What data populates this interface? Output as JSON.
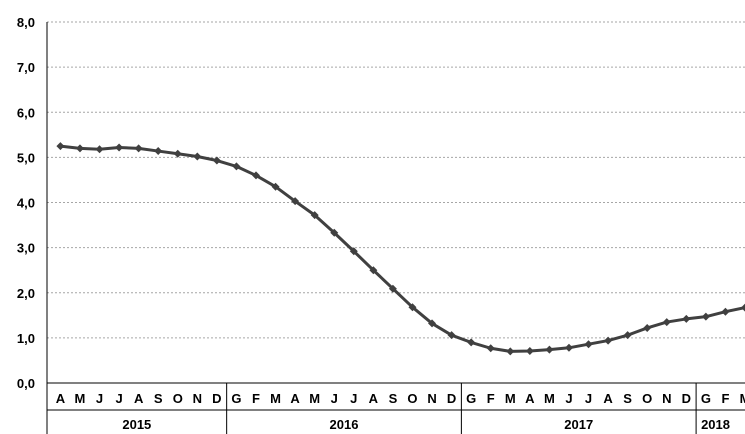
{
  "chart_data": {
    "type": "line",
    "title": "",
    "xlabel": "",
    "ylabel": "",
    "ylim": [
      0,
      8
    ],
    "y_ticks": [
      "0,0",
      "1,0",
      "2,0",
      "3,0",
      "4,0",
      "5,0",
      "6,0",
      "7,0",
      "8,0"
    ],
    "grid": "horizontal dotted",
    "legend": "none",
    "colors": {
      "line": "#404040",
      "marker": "#404040",
      "grid": "#a6a6a6",
      "axis": "#000000"
    },
    "months": [
      "A",
      "M",
      "J",
      "J",
      "A",
      "S",
      "O",
      "N",
      "D",
      "G",
      "F",
      "M",
      "A",
      "M",
      "J",
      "J",
      "A",
      "S",
      "O",
      "N",
      "D",
      "G",
      "F",
      "M",
      "A",
      "M",
      "J",
      "J",
      "A",
      "S",
      "O",
      "N",
      "D",
      "G",
      "F",
      "M"
    ],
    "years": [
      {
        "label": "2015",
        "months": 9
      },
      {
        "label": "2016",
        "months": 12
      },
      {
        "label": "2017",
        "months": 12
      },
      {
        "label": "2018",
        "months": 3
      }
    ],
    "series": [
      {
        "values": [
          5.25,
          5.2,
          5.18,
          5.22,
          5.2,
          5.14,
          5.08,
          5.02,
          4.93,
          4.8,
          4.6,
          4.35,
          4.03,
          3.72,
          3.33,
          2.92,
          2.5,
          2.09,
          1.68,
          1.32,
          1.06,
          0.9,
          0.77,
          0.7,
          0.71,
          0.74,
          0.78,
          0.86,
          0.94,
          1.06,
          1.22,
          1.35,
          1.42,
          1.47,
          1.58,
          1.67
        ]
      }
    ]
  }
}
